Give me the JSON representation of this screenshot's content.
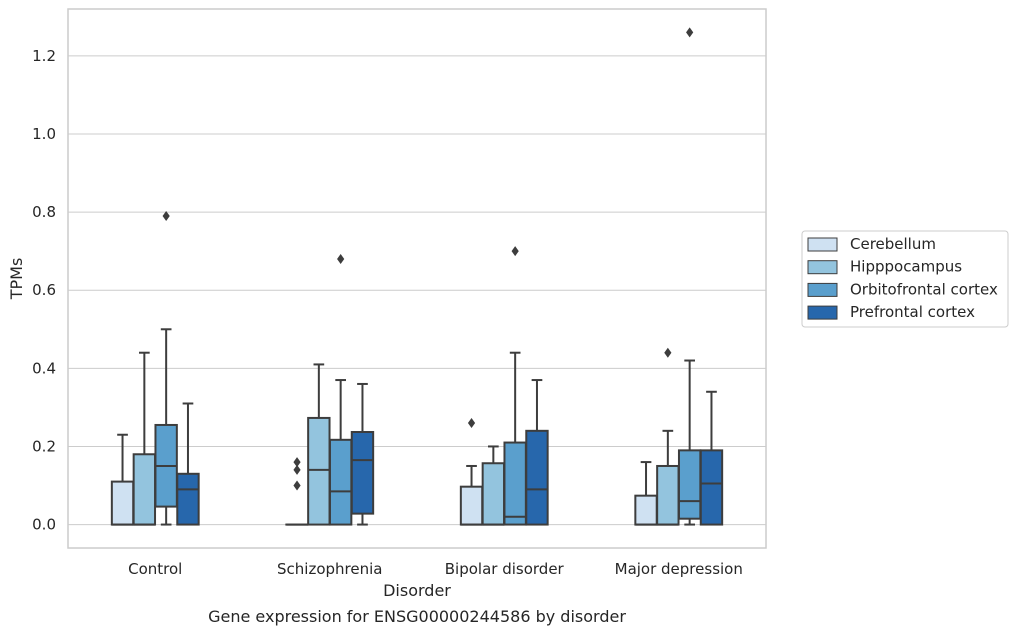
{
  "caption": "Gene expression for ENSG00000244586 by disorder",
  "chart_data": {
    "type": "box",
    "xlabel": "Disorder",
    "ylabel": "TPMs",
    "ylim": [
      -0.06,
      1.32
    ],
    "yticks": [
      "0.0",
      "0.2",
      "0.4",
      "0.6",
      "0.8",
      "1.0",
      "1.2"
    ],
    "grid": "horizontal",
    "legend_position": "right",
    "categories": [
      "Control",
      "Schizophrenia",
      "Bipolar disorder",
      "Major depression"
    ],
    "series": [
      {
        "name": "Cerebellum",
        "color": "#cfe1f2",
        "boxes": [
          {
            "whislo": 0.0,
            "q1": 0.0,
            "med": 0.0,
            "q3": 0.11,
            "whishi": 0.23,
            "fliers": []
          },
          {
            "whislo": 0.0,
            "q1": 0.0,
            "med": 0.0,
            "q3": 0.0,
            "whishi": 0.0,
            "fliers": [
              0.16,
              0.14,
              0.1
            ]
          },
          {
            "whislo": 0.0,
            "q1": 0.0,
            "med": 0.0,
            "q3": 0.097,
            "whishi": 0.15,
            "fliers": [
              0.26
            ]
          },
          {
            "whislo": 0.0,
            "q1": 0.0,
            "med": 0.0,
            "q3": 0.074,
            "whishi": 0.16,
            "fliers": []
          }
        ]
      },
      {
        "name": "Hipppocampus",
        "color": "#93c4de",
        "boxes": [
          {
            "whislo": 0.0,
            "q1": 0.0,
            "med": 0.0,
            "q3": 0.18,
            "whishi": 0.44,
            "fliers": []
          },
          {
            "whislo": 0.0,
            "q1": 0.0,
            "med": 0.14,
            "q3": 0.273,
            "whishi": 0.41,
            "fliers": []
          },
          {
            "whislo": 0.0,
            "q1": 0.0,
            "med": 0.0,
            "q3": 0.157,
            "whishi": 0.2,
            "fliers": []
          },
          {
            "whislo": 0.0,
            "q1": 0.0,
            "med": 0.0,
            "q3": 0.15,
            "whishi": 0.24,
            "fliers": [
              0.44
            ]
          }
        ]
      },
      {
        "name": "Orbitofrontal cortex",
        "color": "#5a9fcd",
        "boxes": [
          {
            "whislo": 0.0,
            "q1": 0.046,
            "med": 0.15,
            "q3": 0.255,
            "whishi": 0.5,
            "fliers": [
              0.79
            ]
          },
          {
            "whislo": 0.0,
            "q1": 0.0,
            "med": 0.085,
            "q3": 0.217,
            "whishi": 0.37,
            "fliers": [
              0.68
            ]
          },
          {
            "whislo": 0.0,
            "q1": 0.0,
            "med": 0.02,
            "q3": 0.21,
            "whishi": 0.44,
            "fliers": [
              0.7
            ]
          },
          {
            "whislo": 0.0,
            "q1": 0.015,
            "med": 0.06,
            "q3": 0.19,
            "whishi": 0.42,
            "fliers": [
              1.26
            ]
          }
        ]
      },
      {
        "name": "Prefrontal cortex",
        "color": "#2767ac",
        "boxes": [
          {
            "whislo": 0.0,
            "q1": 0.0,
            "med": 0.09,
            "q3": 0.13,
            "whishi": 0.31,
            "fliers": []
          },
          {
            "whislo": 0.0,
            "q1": 0.028,
            "med": 0.165,
            "q3": 0.237,
            "whishi": 0.36,
            "fliers": []
          },
          {
            "whislo": 0.0,
            "q1": 0.0,
            "med": 0.09,
            "q3": 0.24,
            "whishi": 0.37,
            "fliers": []
          },
          {
            "whislo": 0.0,
            "q1": 0.0,
            "med": 0.105,
            "q3": 0.19,
            "whishi": 0.34,
            "fliers": []
          }
        ]
      }
    ]
  }
}
